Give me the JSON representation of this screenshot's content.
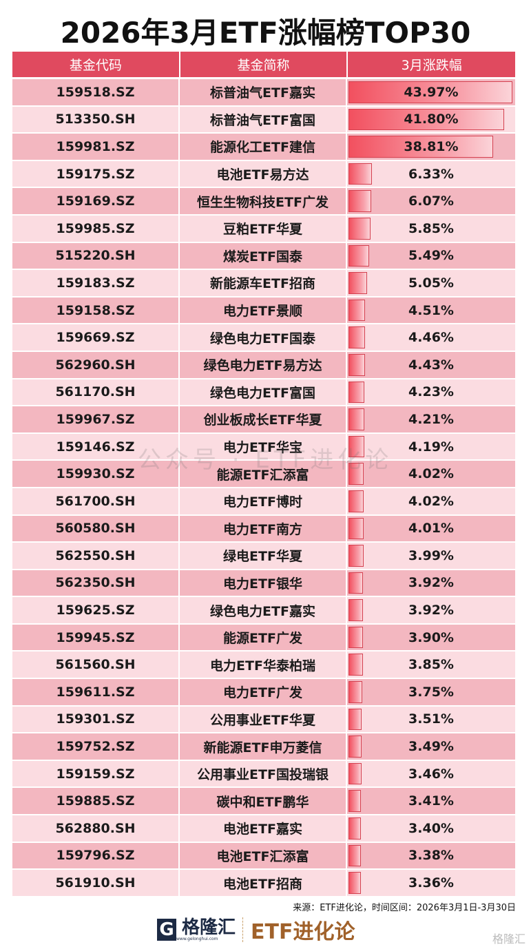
{
  "title": "2026年3月ETF涨幅榜TOP30",
  "columns": [
    "基金代码",
    "基金简称",
    "3月涨跌幅"
  ],
  "rows": [
    {
      "code": "159518.SZ",
      "name": "标普油气ETF嘉实",
      "change": "43.97%",
      "value": 43.97
    },
    {
      "code": "513350.SH",
      "name": "标普油气ETF富国",
      "change": "41.80%",
      "value": 41.8
    },
    {
      "code": "159981.SZ",
      "name": "能源化工ETF建信",
      "change": "38.81%",
      "value": 38.81
    },
    {
      "code": "159175.SZ",
      "name": "电池ETF易方达",
      "change": "6.33%",
      "value": 6.33
    },
    {
      "code": "159169.SZ",
      "name": "恒生生物科技ETF广发",
      "change": "6.07%",
      "value": 6.07
    },
    {
      "code": "159985.SZ",
      "name": "豆粕ETF华夏",
      "change": "5.85%",
      "value": 5.85
    },
    {
      "code": "515220.SH",
      "name": "煤炭ETF国泰",
      "change": "5.49%",
      "value": 5.49
    },
    {
      "code": "159183.SZ",
      "name": "新能源车ETF招商",
      "change": "5.05%",
      "value": 5.05
    },
    {
      "code": "159158.SZ",
      "name": "电力ETF景顺",
      "change": "4.51%",
      "value": 4.51
    },
    {
      "code": "159669.SZ",
      "name": "绿色电力ETF国泰",
      "change": "4.46%",
      "value": 4.46
    },
    {
      "code": "562960.SH",
      "name": "绿色电力ETF易方达",
      "change": "4.43%",
      "value": 4.43
    },
    {
      "code": "561170.SH",
      "name": "绿色电力ETF富国",
      "change": "4.23%",
      "value": 4.23
    },
    {
      "code": "159967.SZ",
      "name": "创业板成长ETF华夏",
      "change": "4.21%",
      "value": 4.21
    },
    {
      "code": "159146.SZ",
      "name": "电力ETF华宝",
      "change": "4.19%",
      "value": 4.19
    },
    {
      "code": "159930.SZ",
      "name": "能源ETF汇添富",
      "change": "4.02%",
      "value": 4.02
    },
    {
      "code": "561700.SH",
      "name": "电力ETF博时",
      "change": "4.02%",
      "value": 4.02
    },
    {
      "code": "560580.SH",
      "name": "电力ETF南方",
      "change": "4.01%",
      "value": 4.01
    },
    {
      "code": "562550.SH",
      "name": "绿电ETF华夏",
      "change": "3.99%",
      "value": 3.99
    },
    {
      "code": "562350.SH",
      "name": "电力ETF银华",
      "change": "3.92%",
      "value": 3.92
    },
    {
      "code": "159625.SZ",
      "name": "绿色电力ETF嘉实",
      "change": "3.92%",
      "value": 3.92
    },
    {
      "code": "159945.SZ",
      "name": "能源ETF广发",
      "change": "3.90%",
      "value": 3.9
    },
    {
      "code": "561560.SH",
      "name": "电力ETF华泰柏瑞",
      "change": "3.85%",
      "value": 3.85
    },
    {
      "code": "159611.SZ",
      "name": "电力ETF广发",
      "change": "3.75%",
      "value": 3.75
    },
    {
      "code": "159301.SZ",
      "name": "公用事业ETF华夏",
      "change": "3.51%",
      "value": 3.51
    },
    {
      "code": "159752.SZ",
      "name": "新能源ETF申万菱信",
      "change": "3.49%",
      "value": 3.49
    },
    {
      "code": "159159.SZ",
      "name": "公用事业ETF国投瑞银",
      "change": "3.46%",
      "value": 3.46
    },
    {
      "code": "159885.SZ",
      "name": "碳中和ETF鹏华",
      "change": "3.41%",
      "value": 3.41
    },
    {
      "code": "562880.SH",
      "name": "电池ETF嘉实",
      "change": "3.40%",
      "value": 3.4
    },
    {
      "code": "159796.SZ",
      "name": "电池ETF汇添富",
      "change": "3.38%",
      "value": 3.38
    },
    {
      "code": "561910.SH",
      "name": "电池ETF招商",
      "change": "3.36%",
      "value": 3.36
    }
  ],
  "watermark": "公众号 · ETF进化论",
  "source": "来源：ETF进化论，时间区间：2026年3月1日-3月30日",
  "logo": {
    "brand": "格隆汇",
    "url": "www.gelonghui.com",
    "partner": "ETF进化论",
    "corner": "格隆汇"
  },
  "colors": {
    "header": "#e04a5f",
    "row_dark": "#f3b7c0",
    "row_light": "#fbdce1",
    "bar": "#f2505f"
  }
}
